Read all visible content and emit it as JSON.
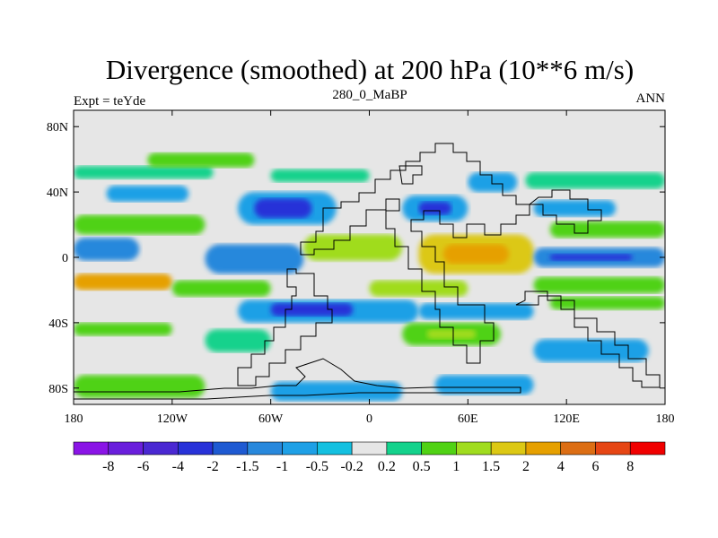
{
  "chart_data": {
    "type": "heatmap",
    "title": "Divergence (smoothed) at 200 hPa (10**6 m/s)",
    "left_label": "Expt = teYde",
    "center_label": "280_0_MaBP",
    "right_label": "ANN",
    "x_ticks": [
      "180",
      "120W",
      "60W",
      "0",
      "60E",
      "120E",
      "180"
    ],
    "x_tick_values": [
      -180,
      -120,
      -60,
      0,
      60,
      120,
      180
    ],
    "y_ticks": [
      "80N",
      "40N",
      "0",
      "40S",
      "80S"
    ],
    "y_tick_values": [
      80,
      40,
      0,
      -40,
      -80
    ],
    "xlim": [
      -180,
      180
    ],
    "ylim": [
      -90,
      90
    ],
    "contour_levels": [
      "-8",
      "-6",
      "-4",
      "-2",
      "-1.5",
      "-1",
      "-0.5",
      "-0.2",
      "0.2",
      "0.5",
      "1",
      "1.5",
      "2",
      "4",
      "6",
      "8"
    ],
    "color_bins": [
      "#8a14e6",
      "#6a1edc",
      "#4a28d2",
      "#2832d8",
      "#1e5ad2",
      "#2888dc",
      "#1ea0e6",
      "#14c0e0",
      "#e6e6e6",
      "#14d28c",
      "#50d214",
      "#a0dc1e",
      "#dcc814",
      "#e6a000",
      "#dc6e14",
      "#e64614",
      "#f00000"
    ],
    "regions": [
      {
        "lon0": -180,
        "lon1": 180,
        "lat0": -90,
        "lat1": 90,
        "bin": 8
      },
      {
        "lon0": -180,
        "lon1": -95,
        "lat0": 48,
        "lat1": 56,
        "bin": 9
      },
      {
        "lon0": -135,
        "lon1": -70,
        "lat0": 55,
        "lat1": 64,
        "bin": 10
      },
      {
        "lon0": -60,
        "lon1": 0,
        "lat0": 46,
        "lat1": 54,
        "bin": 9
      },
      {
        "lon0": 95,
        "lon1": 180,
        "lat0": 42,
        "lat1": 52,
        "bin": 9
      },
      {
        "lon0": -160,
        "lon1": -110,
        "lat0": 34,
        "lat1": 44,
        "bin": 6
      },
      {
        "lon0": -80,
        "lon1": -20,
        "lat0": 20,
        "lat1": 40,
        "bin": 6
      },
      {
        "lon0": -70,
        "lon1": -35,
        "lat0": 24,
        "lat1": 36,
        "bin": 3
      },
      {
        "lon0": 20,
        "lon1": 60,
        "lat0": 22,
        "lat1": 38,
        "bin": 6
      },
      {
        "lon0": 30,
        "lon1": 50,
        "lat0": 26,
        "lat1": 34,
        "bin": 3
      },
      {
        "lon0": 60,
        "lon1": 90,
        "lat0": 40,
        "lat1": 52,
        "bin": 6
      },
      {
        "lon0": 100,
        "lon1": 150,
        "lat0": 25,
        "lat1": 35,
        "bin": 6
      },
      {
        "lon0": -180,
        "lon1": -100,
        "lat0": 14,
        "lat1": 26,
        "bin": 10
      },
      {
        "lon0": -180,
        "lon1": -140,
        "lat0": -2,
        "lat1": 12,
        "bin": 5
      },
      {
        "lon0": -100,
        "lon1": -40,
        "lat0": -10,
        "lat1": 8,
        "bin": 5
      },
      {
        "lon0": -40,
        "lon1": 20,
        "lat0": -2,
        "lat1": 14,
        "bin": 11
      },
      {
        "lon0": 30,
        "lon1": 100,
        "lat0": -10,
        "lat1": 14,
        "bin": 12
      },
      {
        "lon0": 45,
        "lon1": 85,
        "lat0": -4,
        "lat1": 8,
        "bin": 13
      },
      {
        "lon0": 100,
        "lon1": 180,
        "lat0": -6,
        "lat1": 6,
        "bin": 5
      },
      {
        "lon0": 110,
        "lon1": 160,
        "lat0": -2,
        "lat1": 2,
        "bin": 3
      },
      {
        "lon0": 110,
        "lon1": 180,
        "lat0": 12,
        "lat1": 22,
        "bin": 10
      },
      {
        "lon0": -180,
        "lon1": -120,
        "lat0": -20,
        "lat1": -10,
        "bin": 13
      },
      {
        "lon0": -120,
        "lon1": -60,
        "lat0": -24,
        "lat1": -14,
        "bin": 10
      },
      {
        "lon0": 0,
        "lon1": 60,
        "lat0": -24,
        "lat1": -14,
        "bin": 11
      },
      {
        "lon0": 100,
        "lon1": 180,
        "lat0": -22,
        "lat1": -12,
        "bin": 10
      },
      {
        "lon0": -80,
        "lon1": 30,
        "lat0": -40,
        "lat1": -26,
        "bin": 6
      },
      {
        "lon0": -60,
        "lon1": -10,
        "lat0": -36,
        "lat1": -28,
        "bin": 3
      },
      {
        "lon0": 30,
        "lon1": 100,
        "lat0": -38,
        "lat1": -28,
        "bin": 6
      },
      {
        "lon0": 110,
        "lon1": 180,
        "lat0": -32,
        "lat1": -24,
        "bin": 10
      },
      {
        "lon0": -180,
        "lon1": -120,
        "lat0": -48,
        "lat1": -40,
        "bin": 10
      },
      {
        "lon0": -100,
        "lon1": -60,
        "lat0": -58,
        "lat1": -44,
        "bin": 9
      },
      {
        "lon0": 20,
        "lon1": 80,
        "lat0": -54,
        "lat1": -40,
        "bin": 10
      },
      {
        "lon0": 35,
        "lon1": 65,
        "lat0": -50,
        "lat1": -44,
        "bin": 11
      },
      {
        "lon0": 100,
        "lon1": 170,
        "lat0": -64,
        "lat1": -50,
        "bin": 6
      },
      {
        "lon0": -180,
        "lon1": -100,
        "lat0": -86,
        "lat1": -72,
        "bin": 10
      },
      {
        "lon0": -60,
        "lon1": 20,
        "lat0": -88,
        "lat1": -76,
        "bin": 6
      },
      {
        "lon0": 40,
        "lon1": 100,
        "lat0": -84,
        "lat1": -72,
        "bin": 6
      }
    ]
  }
}
